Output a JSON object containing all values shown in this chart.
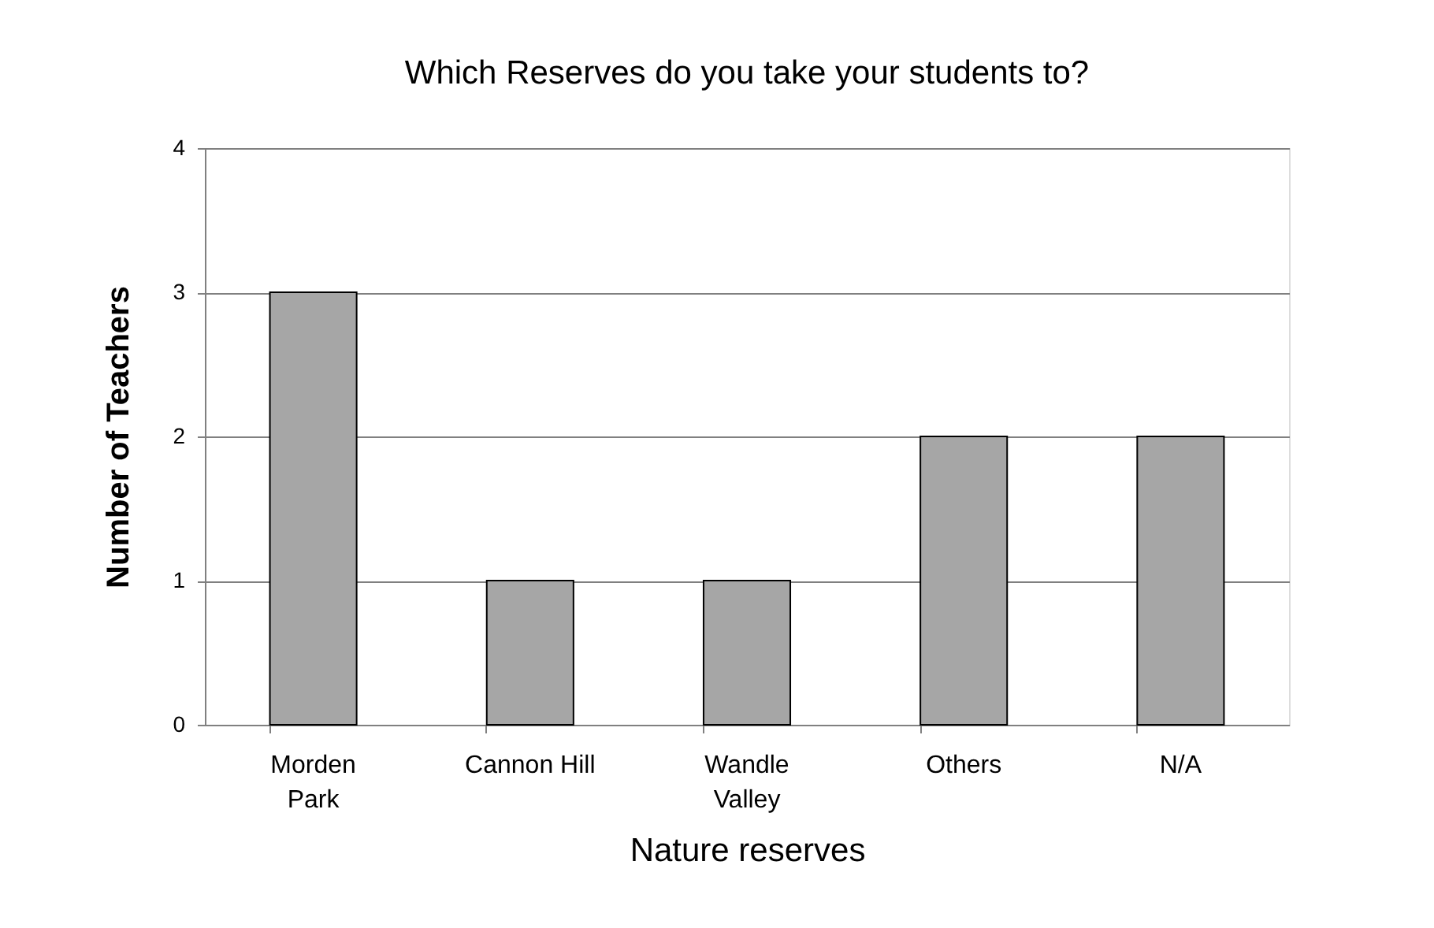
{
  "chart_data": {
    "type": "bar",
    "title": "Which Reserves do you take your students to?",
    "xlabel": "Nature reserves",
    "ylabel": "Number of Teachers",
    "categories": [
      "Morden\nPark",
      "Cannon Hill",
      "Wandle\nValley",
      "Others",
      "N/A"
    ],
    "values": [
      3,
      1,
      1,
      2,
      2
    ],
    "color": "#a6a6a6",
    "ylim": [
      0,
      4
    ],
    "yticks": [
      0,
      1,
      2,
      3,
      4
    ],
    "grid": "y"
  }
}
